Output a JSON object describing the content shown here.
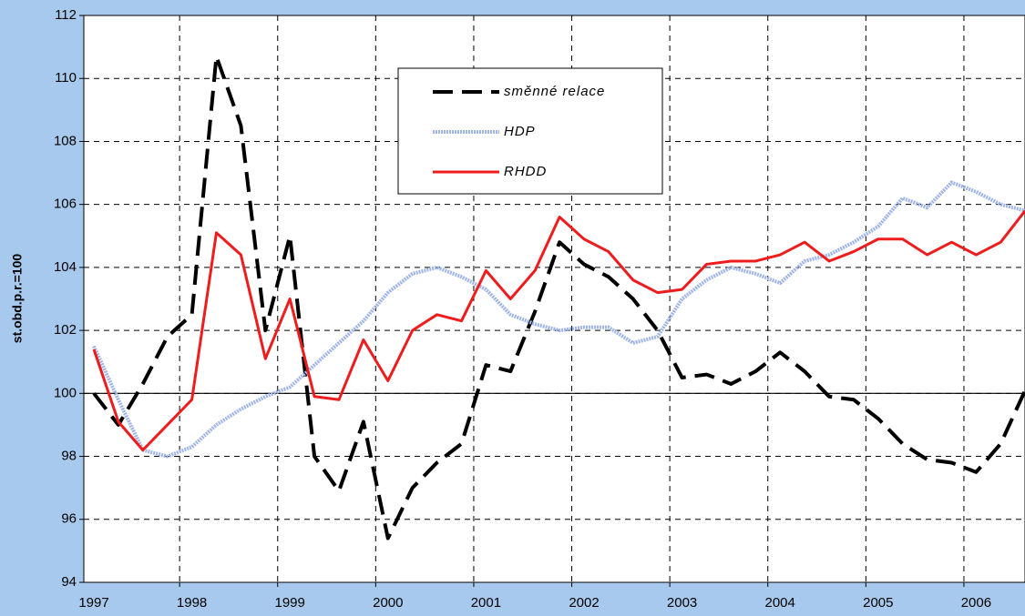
{
  "chart_data": {
    "type": "line",
    "y_label": "st.obd.p.r.=100",
    "categories": [
      "1997",
      null,
      null,
      null,
      "1998",
      null,
      null,
      null,
      "1999",
      null,
      null,
      null,
      "2000",
      null,
      null,
      null,
      "2001",
      null,
      null,
      null,
      "2002",
      null,
      null,
      null,
      "2003",
      null,
      null,
      null,
      "2004",
      null,
      null,
      null,
      "2005",
      null,
      null,
      null,
      "2006",
      null,
      null
    ],
    "series": [
      {
        "name": "směnné relace",
        "color": "#000000",
        "style": "dashed",
        "values": [
          100.0,
          99.0,
          100.3,
          101.8,
          102.5,
          110.7,
          108.5,
          102.0,
          105.0,
          98.0,
          96.9,
          99.1,
          95.4,
          97.0,
          97.8,
          98.4,
          100.9,
          100.7,
          102.6,
          104.8,
          104.1,
          103.7,
          103.0,
          102.0,
          100.5,
          100.6,
          100.3,
          100.7,
          101.3,
          100.7,
          99.9,
          99.8,
          99.2,
          98.4,
          97.9,
          97.8,
          97.5,
          98.4,
          100.1
        ]
      },
      {
        "name": "HDP",
        "color": "#9fb5ea",
        "style": "dotted",
        "values": [
          101.5,
          99.8,
          98.2,
          98.0,
          98.3,
          99.0,
          99.5,
          99.9,
          100.2,
          100.9,
          101.6,
          102.3,
          103.2,
          103.8,
          104.0,
          103.7,
          103.3,
          102.5,
          102.2,
          102.0,
          102.1,
          102.1,
          101.6,
          101.8,
          103.0,
          103.6,
          104.0,
          103.8,
          103.5,
          104.2,
          104.4,
          104.8,
          105.3,
          106.2,
          105.9,
          106.7,
          106.4,
          106.0,
          105.8
        ]
      },
      {
        "name": "RHDD",
        "color": "#ee1c1c",
        "style": "solid",
        "values": [
          101.4,
          99.1,
          98.2,
          99.0,
          99.8,
          105.1,
          104.4,
          101.1,
          103.0,
          99.9,
          99.8,
          101.7,
          100.4,
          102.0,
          102.5,
          102.3,
          103.9,
          103.0,
          103.9,
          105.6,
          104.9,
          104.5,
          103.6,
          103.2,
          103.3,
          104.1,
          104.2,
          104.2,
          104.4,
          104.8,
          104.2,
          104.5,
          104.9,
          104.9,
          104.4,
          104.8,
          104.4,
          104.8,
          105.8
        ]
      }
    ],
    "ylim": [
      94,
      112
    ],
    "yticks": [
      94,
      96,
      98,
      100,
      102,
      104,
      106,
      108,
      110,
      112
    ],
    "reference_line": 100,
    "grid": true
  }
}
